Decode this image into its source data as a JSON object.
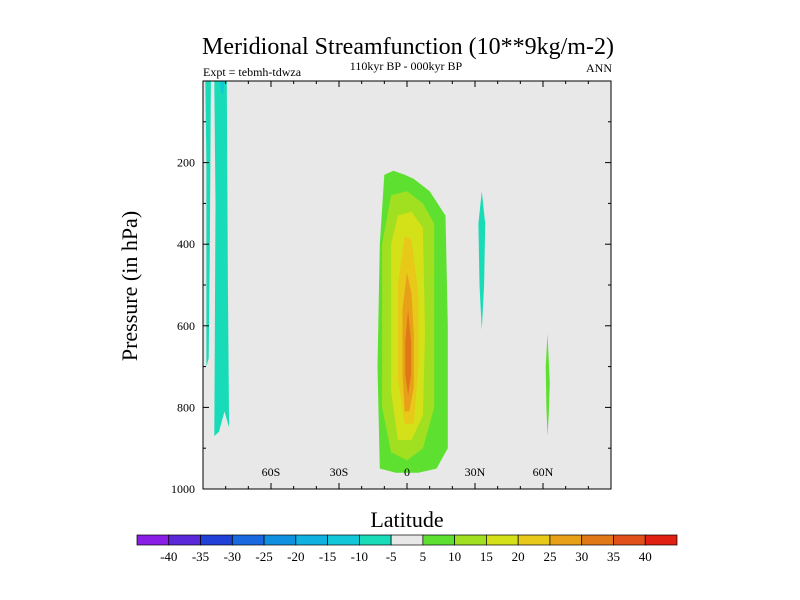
{
  "chart_data": {
    "type": "contour",
    "title": "Meridional Streamfunction (10**9kg/m-2)",
    "subtitle": "110kyr BP - 000kyr BP",
    "left_label": "Expt = tebmh-tdwza",
    "right_label": "ANN",
    "xlabel": "Latitude",
    "ylabel": "Pressure (in hPa)",
    "xlim": [
      -90,
      90
    ],
    "ylim": [
      0,
      1000
    ],
    "y_reversed": true,
    "x_ticks": [
      {
        "value": -60,
        "label": "60S"
      },
      {
        "value": -30,
        "label": "30S"
      },
      {
        "value": 0,
        "label": "0"
      },
      {
        "value": 30,
        "label": "30N"
      },
      {
        "value": 60,
        "label": "60N"
      }
    ],
    "y_ticks": [
      {
        "value": 200,
        "label": "200"
      },
      {
        "value": 400,
        "label": "400"
      },
      {
        "value": 600,
        "label": "600"
      },
      {
        "value": 800,
        "label": "800"
      },
      {
        "value": 1000,
        "label": "1000"
      }
    ],
    "background_color": "#e8e8e8",
    "colorbar": {
      "labels": [
        "-40",
        "-35",
        "-30",
        "-25",
        "-20",
        "-15",
        "-10",
        "-5",
        "5",
        "10",
        "15",
        "20",
        "25",
        "30",
        "35",
        "40"
      ],
      "colors": [
        "#8a1ee6",
        "#5a28d8",
        "#2040d8",
        "#1a68e0",
        "#1090e0",
        "#10b0e0",
        "#12c8d8",
        "#18dcb8",
        "#e8e8e8",
        "#5ee030",
        "#a0e020",
        "#d4e018",
        "#e8c818",
        "#e8a018",
        "#e07818",
        "#e05018",
        "#e02010"
      ]
    },
    "regions": [
      {
        "level": "-5 to -10",
        "color": "#18dcb8",
        "points": [
          [
            -89,
            1
          ],
          [
            -88.5,
            200
          ],
          [
            -88.5,
            700
          ],
          [
            -87.5,
            680
          ],
          [
            -87,
            420
          ],
          [
            -86.5,
            1
          ],
          [
            -85,
            1
          ],
          [
            -84.5,
            300
          ],
          [
            -85,
            870
          ],
          [
            -83,
            860
          ],
          [
            -80.5,
            810
          ],
          [
            -78.5,
            850
          ],
          [
            -79,
            500
          ],
          [
            -79.5,
            1
          ]
        ]
      },
      {
        "level": "-10 to -15",
        "color": "#12c8d8",
        "points": [
          [
            -82.5,
            1
          ],
          [
            -82,
            30
          ],
          [
            -81,
            30
          ],
          [
            -80.5,
            1
          ]
        ]
      },
      {
        "level": "-5 to -10",
        "color": "#18dcb8",
        "points": [
          [
            33,
            270
          ],
          [
            34.5,
            350
          ],
          [
            34,
            500
          ],
          [
            33,
            610
          ],
          [
            32,
            500
          ],
          [
            31.5,
            350
          ]
        ]
      },
      {
        "level": "5 to -5 anomaly",
        "color": "#5ee030",
        "points": [
          [
            62,
            620
          ],
          [
            63,
            740
          ],
          [
            62.5,
            820
          ],
          [
            62,
            870
          ],
          [
            61.5,
            800
          ],
          [
            61.2,
            700
          ]
        ]
      },
      {
        "level": "5 to 10",
        "color": "#5ee030",
        "points": [
          [
            -10,
            230
          ],
          [
            -6,
            220
          ],
          [
            -1,
            230
          ],
          [
            3,
            240
          ],
          [
            10,
            270
          ],
          [
            17,
            330
          ],
          [
            18,
            600
          ],
          [
            18,
            900
          ],
          [
            13,
            950
          ],
          [
            5,
            960
          ],
          [
            -5,
            960
          ],
          [
            -12,
            950
          ],
          [
            -13,
            700
          ],
          [
            -12,
            400
          ]
        ]
      },
      {
        "level": "10 to 15",
        "color": "#a0e020",
        "points": [
          [
            -7,
            280
          ],
          [
            0,
            270
          ],
          [
            7,
            300
          ],
          [
            12,
            350
          ],
          [
            12,
            800
          ],
          [
            7,
            900
          ],
          [
            0,
            930
          ],
          [
            -7,
            910
          ],
          [
            -11,
            800
          ],
          [
            -11,
            400
          ]
        ]
      },
      {
        "level": "15 to 20",
        "color": "#d4e018",
        "points": [
          [
            -4,
            330
          ],
          [
            2,
            320
          ],
          [
            7,
            360
          ],
          [
            8,
            620
          ],
          [
            7,
            820
          ],
          [
            2,
            880
          ],
          [
            -4,
            880
          ],
          [
            -7,
            760
          ],
          [
            -7,
            400
          ]
        ]
      },
      {
        "level": "20 to 25",
        "color": "#e8c818",
        "points": [
          [
            -1,
            380
          ],
          [
            2,
            390
          ],
          [
            5,
            520
          ],
          [
            5,
            700
          ],
          [
            3,
            840
          ],
          [
            -1,
            840
          ],
          [
            -4,
            730
          ],
          [
            -4,
            500
          ]
        ]
      },
      {
        "level": "25 to 30",
        "color": "#e8a018",
        "points": [
          [
            0,
            470
          ],
          [
            2,
            520
          ],
          [
            3,
            620
          ],
          [
            3,
            750
          ],
          [
            1,
            810
          ],
          [
            -1,
            810
          ],
          [
            -2,
            720
          ],
          [
            -2,
            560
          ]
        ]
      },
      {
        "level": "30 to 35",
        "color": "#e07818",
        "points": [
          [
            0.5,
            560
          ],
          [
            1.8,
            640
          ],
          [
            1.8,
            720
          ],
          [
            0.5,
            770
          ],
          [
            -0.8,
            720
          ],
          [
            -0.8,
            640
          ]
        ]
      }
    ]
  }
}
